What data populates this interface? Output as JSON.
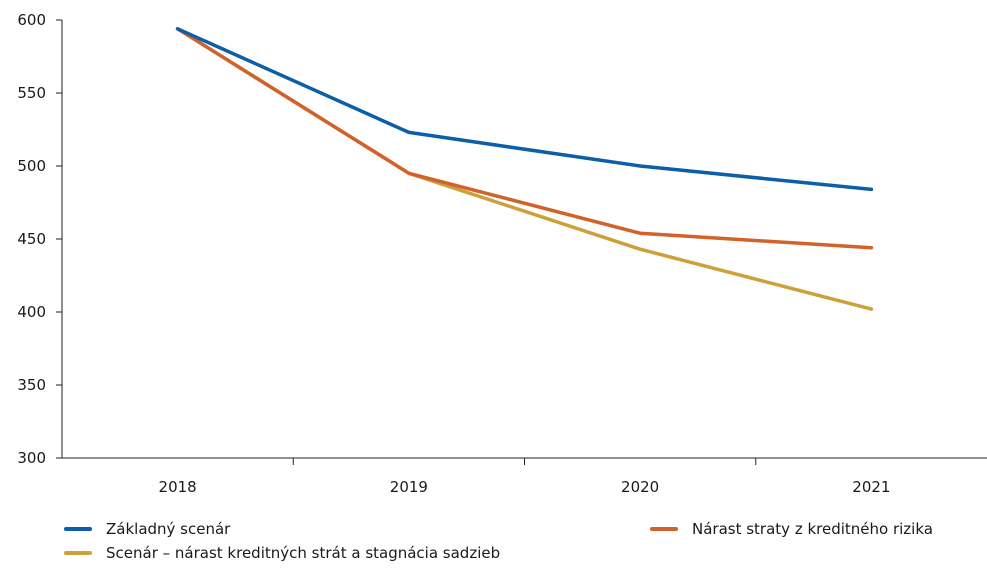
{
  "chart_data": {
    "type": "line",
    "categories": [
      "2018",
      "2019",
      "2020",
      "2021"
    ],
    "series": [
      {
        "name": "Základný scenár",
        "color": "#0d5ea8",
        "values": [
          594,
          523,
          500,
          484
        ]
      },
      {
        "name": "Nárast straty z kreditného rizika",
        "color": "#d0622a",
        "values": [
          594,
          495,
          454,
          444
        ]
      },
      {
        "name": "Scenár – nárast kreditných strát a stagnácia sadzieb",
        "color": "#cda03a",
        "values": [
          594,
          495,
          443,
          402
        ]
      }
    ],
    "yticks": [
      300,
      350,
      400,
      450,
      500,
      550,
      600
    ],
    "ylim": [
      300,
      600
    ],
    "grid": false,
    "legend_position": "bottom",
    "title": "",
    "xlabel": "",
    "ylabel": ""
  }
}
